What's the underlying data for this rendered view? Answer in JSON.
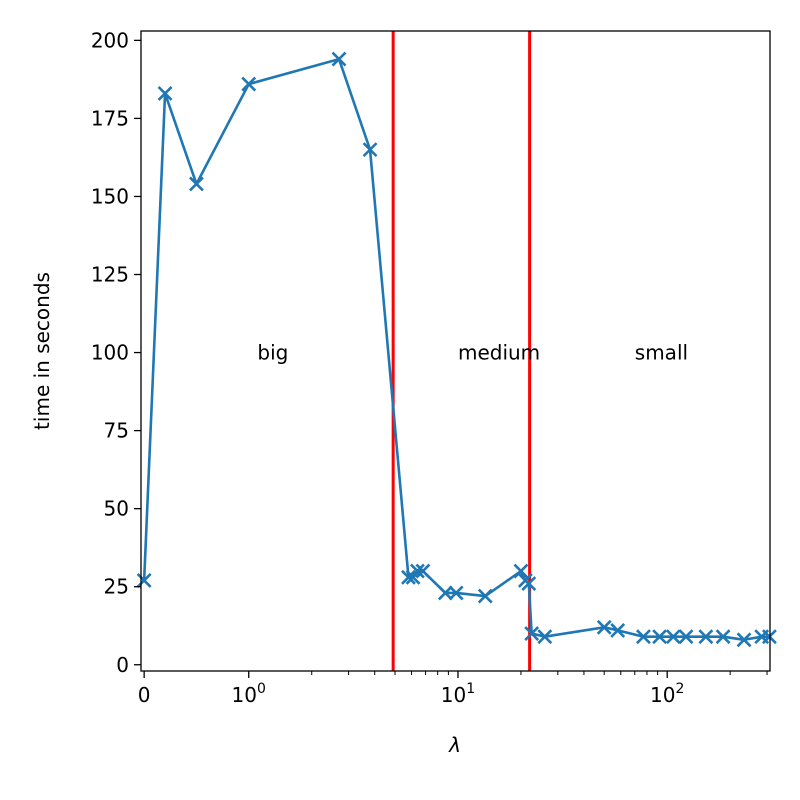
{
  "chart_data": {
    "type": "line",
    "xscale": "symlog",
    "xlabel": "λ",
    "ylabel": "time in seconds",
    "xlim": [
      -0.03,
      310
    ],
    "ylim": [
      -2,
      203
    ],
    "x_ticks": [
      {
        "value": 0,
        "base": "0",
        "exp": ""
      },
      {
        "value": 1,
        "base": "10",
        "exp": "0"
      },
      {
        "value": 10,
        "base": "10",
        "exp": "1"
      },
      {
        "value": 100,
        "base": "10",
        "exp": "2"
      }
    ],
    "y_ticks": [
      0,
      25,
      50,
      75,
      100,
      125,
      150,
      175,
      200
    ],
    "series": [
      {
        "color": "#1f77b4",
        "marker": "x",
        "x": [
          0,
          0.2,
          0.5,
          1.0,
          2.7,
          3.8,
          5.8,
          6.1,
          6.4,
          6.8,
          8.7,
          9.8,
          13.5,
          20.0,
          21.0,
          21.8,
          22.5,
          26.0,
          50.0,
          58.0,
          77.0,
          92.0,
          107.0,
          123.0,
          153.0,
          185.0,
          233.0,
          283.0,
          308.0
        ],
        "y": [
          27,
          183,
          154,
          186,
          194,
          165,
          28,
          28,
          30,
          30,
          23,
          23,
          22,
          30,
          27,
          26,
          10,
          9,
          12,
          11,
          9,
          9,
          9,
          9,
          9,
          9,
          8,
          9,
          9
        ]
      }
    ],
    "vlines": [
      {
        "x": 4.9,
        "color": "#ff0000"
      },
      {
        "x": 22.0,
        "color": "#ff0000"
      }
    ],
    "annotations": [
      {
        "text": "big",
        "x": 1.1,
        "y": 100
      },
      {
        "text": "medium",
        "x": 10.0,
        "y": 100
      },
      {
        "text": "small",
        "x": 70,
        "y": 100
      }
    ],
    "grid": false,
    "legend": "none"
  }
}
